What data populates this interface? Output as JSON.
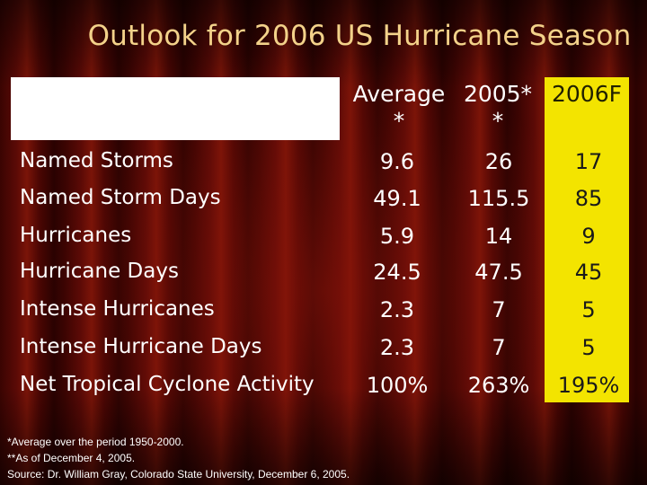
{
  "title": "Outlook for 2006 US Hurricane Season",
  "columns": [
    "Average *",
    "2005* *",
    "2006F"
  ],
  "rows": [
    {
      "label": "Named Storms",
      "avg": "9.6",
      "y2005": "26",
      "f2006": "17"
    },
    {
      "label": "Named Storm Days",
      "avg": "49.1",
      "y2005": "115.5",
      "f2006": "85"
    },
    {
      "label": "Hurricanes",
      "avg": "5.9",
      "y2005": "14",
      "f2006": "9"
    },
    {
      "label": "Hurricane Days",
      "avg": "24.5",
      "y2005": "47.5",
      "f2006": "45"
    },
    {
      "label": "Intense Hurricanes",
      "avg": "2.3",
      "y2005": "7",
      "f2006": "5"
    },
    {
      "label": "Intense Hurricane Days",
      "avg": "2.3",
      "y2005": "7",
      "f2006": "5"
    },
    {
      "label": "Net Tropical Cyclone Activity",
      "avg": "100%",
      "y2005": "263%",
      "f2006": "195%"
    }
  ],
  "footnotes": [
    "*Average over the period 1950-2000.",
    "**As of December 4, 2005.",
    "Source: Dr. William Gray, Colorado State University, December 6, 2005."
  ],
  "colors": {
    "title": "#f3d28a",
    "forecast_highlight": "#f3e400",
    "background": "#5a0a06"
  }
}
